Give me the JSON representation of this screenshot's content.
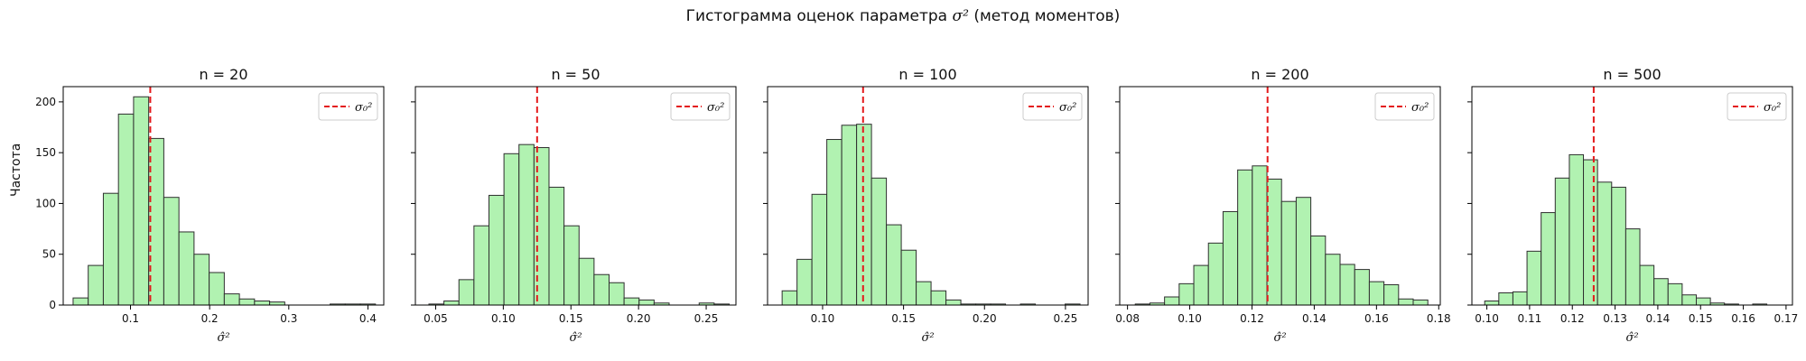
{
  "figure": {
    "title_prefix": "Гистограмма оценок параметра",
    "title_symbol": "σ²",
    "title_suffix": "(метод моментов)",
    "ylabel": "Частота"
  },
  "colors": {
    "bar_fill": "#b1f2b1",
    "bar_edge": "#2f2f2f",
    "ref_line": "#e41a1c"
  },
  "chart_data": [
    {
      "type": "bar",
      "title": "n = 20",
      "xlabel": "σ̂²",
      "legend_label": "σ₀²",
      "legend": "top-right",
      "grid": false,
      "reference_x": 0.125,
      "xlim": [
        0.015,
        0.42
      ],
      "ylim": [
        0,
        215
      ],
      "xticks": [
        0.1,
        0.2,
        0.3,
        0.4
      ],
      "xtick_labels": [
        "0.1",
        "0.2",
        "0.3",
        "0.4"
      ],
      "yticks": [
        0,
        50,
        100,
        150,
        200
      ],
      "ytick_labels": [
        "0",
        "50",
        "100",
        "150",
        "200"
      ],
      "bin_start": 0.0275,
      "bin_width": 0.0191,
      "counts": [
        7,
        39,
        110,
        188,
        205,
        164,
        106,
        72,
        50,
        32,
        11,
        6,
        4,
        3,
        0,
        0,
        0,
        1,
        1,
        1
      ]
    },
    {
      "type": "bar",
      "title": "n = 50",
      "xlabel": "σ̂²",
      "legend_label": "σ₀²",
      "legend": "top-right",
      "grid": false,
      "reference_x": 0.125,
      "xlim": [
        0.035,
        0.272
      ],
      "ylim": [
        0,
        215
      ],
      "xticks": [
        0.05,
        0.1,
        0.15,
        0.2,
        0.25
      ],
      "xtick_labels": [
        "0.05",
        "0.10",
        "0.15",
        "0.20",
        "0.25"
      ],
      "yticks": [
        0,
        50,
        100,
        150,
        200
      ],
      "ytick_labels": [],
      "bin_start": 0.045,
      "bin_width": 0.0111,
      "counts": [
        1,
        4,
        25,
        78,
        108,
        149,
        158,
        155,
        116,
        78,
        46,
        30,
        22,
        7,
        5,
        2,
        0,
        0,
        2,
        1
      ]
    },
    {
      "type": "bar",
      "title": "n = 100",
      "xlabel": "σ̂²",
      "legend_label": "σ₀²",
      "legend": "top-right",
      "grid": false,
      "reference_x": 0.125,
      "xlim": [
        0.066,
        0.264
      ],
      "ylim": [
        0,
        215
      ],
      "xticks": [
        0.1,
        0.15,
        0.2,
        0.25
      ],
      "xtick_labels": [
        "0.10",
        "0.15",
        "0.20",
        "0.25"
      ],
      "yticks": [
        0,
        50,
        100,
        150,
        200
      ],
      "ytick_labels": [],
      "bin_start": 0.075,
      "bin_width": 0.0092,
      "counts": [
        14,
        45,
        109,
        163,
        177,
        178,
        125,
        79,
        54,
        23,
        14,
        5,
        1,
        1,
        1,
        0,
        1,
        0,
        0,
        1
      ]
    },
    {
      "type": "bar",
      "title": "n = 200",
      "xlabel": "σ̂²",
      "legend_label": "σ₀²",
      "legend": "top-right",
      "grid": false,
      "reference_x": 0.125,
      "xlim": [
        0.0775,
        0.1805
      ],
      "ylim": [
        0,
        215
      ],
      "xticks": [
        0.08,
        0.1,
        0.12,
        0.14,
        0.16,
        0.18
      ],
      "xtick_labels": [
        "0.08",
        "0.10",
        "0.12",
        "0.14",
        "0.16",
        "0.18"
      ],
      "yticks": [
        0,
        50,
        100,
        150,
        200
      ],
      "ytick_labels": [],
      "bin_start": 0.0825,
      "bin_width": 0.0047,
      "counts": [
        1,
        2,
        8,
        21,
        39,
        61,
        92,
        133,
        137,
        124,
        102,
        106,
        68,
        50,
        40,
        35,
        23,
        20,
        6,
        5
      ]
    },
    {
      "type": "bar",
      "title": "n = 500",
      "xlabel": "σ̂²",
      "legend_label": "σ₀²",
      "legend": "top-right",
      "grid": false,
      "reference_x": 0.125,
      "xlim": [
        0.0965,
        0.1715
      ],
      "ylim": [
        0,
        215
      ],
      "xticks": [
        0.1,
        0.11,
        0.12,
        0.13,
        0.14,
        0.15,
        0.16,
        0.17
      ],
      "xtick_labels": [
        "0.10",
        "0.11",
        "0.12",
        "0.13",
        "0.14",
        "0.15",
        "0.16",
        "0.17"
      ],
      "yticks": [
        0,
        50,
        100,
        150,
        200
      ],
      "ytick_labels": [],
      "bin_start": 0.0995,
      "bin_width": 0.0033,
      "counts": [
        4,
        12,
        13,
        53,
        91,
        125,
        148,
        143,
        121,
        116,
        75,
        39,
        26,
        21,
        10,
        7,
        2,
        1,
        0,
        1
      ]
    }
  ]
}
